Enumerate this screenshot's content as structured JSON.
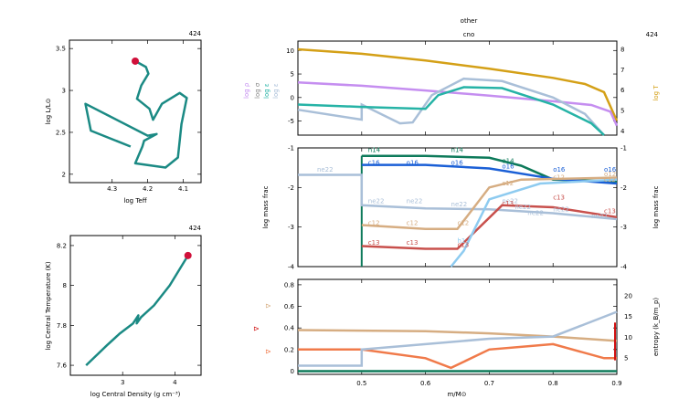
{
  "colors": {
    "teal": "#1b8a84",
    "dot": "#d0103a",
    "purple": "#c58ef0",
    "gold": "#d4a017",
    "grayblue": "#a9bfd8",
    "sea": "#26b3a6",
    "darkgreen": "#0d7a5a",
    "blue": "#1a5fd6",
    "lightblue": "#8ecbf0",
    "tan": "#d6ad82",
    "red": "#c8504c",
    "orange": "#f07a4a",
    "gray": "#888888",
    "darkred": "#d01010"
  },
  "hr": {
    "model": "424",
    "xlabel": "log Teff",
    "ylabel": "log L/L⊙",
    "xticks": [
      "4.3",
      "4.2",
      "4.1"
    ],
    "yticks": [
      "2",
      "2.5",
      "3",
      "3.5"
    ],
    "path": [
      [
        4.248,
        2.33
      ],
      [
        4.36,
        2.52
      ],
      [
        4.375,
        2.84
      ],
      [
        4.2,
        2.46
      ],
      [
        4.175,
        2.48
      ],
      [
        4.21,
        2.4
      ],
      [
        4.215,
        2.33
      ],
      [
        4.235,
        2.13
      ],
      [
        4.15,
        2.08
      ],
      [
        4.115,
        2.2
      ],
      [
        4.105,
        2.6
      ],
      [
        4.09,
        2.91
      ],
      [
        4.11,
        2.97
      ],
      [
        4.16,
        2.84
      ],
      [
        4.185,
        2.65
      ],
      [
        4.195,
        2.78
      ],
      [
        4.23,
        2.9
      ],
      [
        4.218,
        3.06
      ],
      [
        4.198,
        3.2
      ],
      [
        4.205,
        3.28
      ],
      [
        4.235,
        3.35
      ]
    ],
    "end": [
      4.235,
      3.35
    ]
  },
  "trho": {
    "model": "424",
    "xlabel": "log Central Density (g cm⁻³)",
    "ylabel": "log Central Temperature (K)",
    "xticks": [
      "3",
      "4"
    ],
    "yticks": [
      "7.6",
      "7.8",
      "8",
      "8.2"
    ],
    "path": [
      [
        2.3,
        7.6
      ],
      [
        2.7,
        7.7
      ],
      [
        2.95,
        7.76
      ],
      [
        3.2,
        7.81
      ],
      [
        3.3,
        7.85
      ],
      [
        3.27,
        7.81
      ],
      [
        3.35,
        7.84
      ],
      [
        3.6,
        7.9
      ],
      [
        3.9,
        8.0
      ],
      [
        4.25,
        8.15
      ]
    ],
    "end": [
      4.25,
      8.15
    ]
  },
  "top": {
    "model": "424",
    "title1": "other",
    "title2": "cno",
    "yticks": [
      "-5",
      "0",
      "5",
      "10"
    ],
    "rticks": [
      "4",
      "5",
      "6",
      "7",
      "8"
    ],
    "llabels": [
      "log ρ",
      "log σ",
      "log ε",
      "log ε"
    ],
    "rlabel": "log T"
  },
  "mid": {
    "yticks": [
      "-4",
      "-3",
      "-2",
      "-1"
    ],
    "ylabel": "log mass frac",
    "rlabel": "log mass frac",
    "labels": [
      "n14",
      "n14",
      "c16",
      "o16",
      "o16",
      "o14",
      "o16",
      "o16",
      "o16",
      "ne22",
      "ne22",
      "ne22",
      "ne22",
      "ne22",
      "c12",
      "c12",
      "c12",
      "c12",
      "c13",
      "c13",
      "c13",
      "c13",
      "c12",
      "c13",
      "ne22",
      "h1",
      "ne22",
      "o12",
      "c12",
      "c13",
      "ne22",
      "ne22"
    ]
  },
  "bot": {
    "yticks": [
      "0",
      "0.2",
      "0.4",
      "0.6",
      "0.8"
    ],
    "rticks": [
      "5",
      "10",
      "15",
      "20"
    ],
    "xticks": [
      "0.5",
      "0.6",
      "0.7",
      "0.8",
      "0.9"
    ],
    "xlabel": "m/M⊙",
    "rlabel": "entropy (k_B/m_p)",
    "llabels": [
      "∇",
      "∇",
      "∇"
    ]
  },
  "chart_data": [
    {
      "type": "line",
      "title": "",
      "xlabel": "log Teff",
      "ylabel": "log L/L⊙",
      "xlim": [
        4.42,
        4.05
      ],
      "ylim": [
        1.9,
        3.6
      ],
      "series": [
        {
          "values": [
            [
              4.248,
              2.33
            ],
            [
              4.36,
              2.52
            ],
            [
              4.375,
              2.84
            ],
            [
              4.2,
              2.46
            ],
            [
              4.175,
              2.48
            ],
            [
              4.21,
              2.4
            ],
            [
              4.215,
              2.33
            ],
            [
              4.235,
              2.13
            ],
            [
              4.15,
              2.08
            ],
            [
              4.115,
              2.2
            ],
            [
              4.105,
              2.6
            ],
            [
              4.09,
              2.91
            ],
            [
              4.11,
              2.97
            ],
            [
              4.16,
              2.84
            ],
            [
              4.185,
              2.65
            ],
            [
              4.195,
              2.78
            ],
            [
              4.23,
              2.9
            ],
            [
              4.218,
              3.06
            ],
            [
              4.198,
              3.2
            ],
            [
              4.205,
              3.28
            ],
            [
              4.235,
              3.35
            ]
          ]
        }
      ]
    },
    {
      "type": "line",
      "title": "",
      "xlabel": "log Central Density (g cm⁻³)",
      "ylabel": "log Central Temperature (K)",
      "xlim": [
        2.0,
        4.5
      ],
      "ylim": [
        7.55,
        8.25
      ],
      "series": [
        {
          "values": [
            [
              2.3,
              7.6
            ],
            [
              2.7,
              7.7
            ],
            [
              2.95,
              7.76
            ],
            [
              3.2,
              7.81
            ],
            [
              3.3,
              7.85
            ],
            [
              3.27,
              7.81
            ],
            [
              3.35,
              7.84
            ],
            [
              3.6,
              7.9
            ],
            [
              3.9,
              8.0
            ],
            [
              4.25,
              8.15
            ]
          ]
        }
      ]
    },
    {
      "type": "line",
      "title": "other / cno",
      "xlim": [
        0.4,
        0.9
      ],
      "ylim": [
        -8,
        12
      ],
      "y2lim": [
        3.8,
        8.4
      ],
      "series": [
        {
          "color": "#d4a017",
          "axis": "right",
          "values": [
            [
              0.4,
              8.0
            ],
            [
              0.5,
              7.78
            ],
            [
              0.6,
              7.45
            ],
            [
              0.7,
              7.05
            ],
            [
              0.8,
              6.6
            ],
            [
              0.85,
              6.3
            ],
            [
              0.88,
              5.9
            ],
            [
              0.9,
              4.5
            ]
          ]
        },
        {
          "color": "#c58ef0",
          "values": [
            [
              0.4,
              3.2
            ],
            [
              0.5,
              2.5
            ],
            [
              0.6,
              1.5
            ],
            [
              0.7,
              0.4
            ],
            [
              0.8,
              -0.8
            ],
            [
              0.86,
              -1.6
            ],
            [
              0.89,
              -3.0
            ],
            [
              0.9,
              -6
            ]
          ]
        },
        {
          "color": "#a9bfd8",
          "values": [
            [
              0.4,
              -2.6
            ],
            [
              0.5,
              -4.7
            ],
            [
              0.5,
              -1.5
            ],
            [
              0.56,
              -5.5
            ],
            [
              0.58,
              -5.3
            ],
            [
              0.61,
              0.5
            ],
            [
              0.66,
              4.0
            ],
            [
              0.72,
              3.5
            ],
            [
              0.8,
              0
            ],
            [
              0.85,
              -3.5
            ],
            [
              0.88,
              -8
            ]
          ]
        },
        {
          "color": "#26b3a6",
          "values": [
            [
              0.4,
              -1.5
            ],
            [
              0.5,
              -2.0
            ],
            [
              0.6,
              -2.4
            ],
            [
              0.62,
              0.5
            ],
            [
              0.66,
              2.2
            ],
            [
              0.72,
              2.0
            ],
            [
              0.8,
              -1.5
            ],
            [
              0.86,
              -5.5
            ],
            [
              0.88,
              -8
            ]
          ]
        }
      ]
    },
    {
      "type": "line",
      "xlim": [
        0.4,
        0.9
      ],
      "ylim": [
        -4,
        -1
      ],
      "series": [
        {
          "name": "n14",
          "color": "#0d7a5a",
          "values": [
            [
              0.5,
              -1.2
            ],
            [
              0.6,
              -1.2
            ],
            [
              0.7,
              -1.25
            ],
            [
              0.75,
              -1.45
            ],
            [
              0.8,
              -1.8
            ],
            [
              0.9,
              -1.85
            ]
          ]
        },
        {
          "name": "o16",
          "color": "#1a5fd6",
          "values": [
            [
              0.5,
              -1.43
            ],
            [
              0.6,
              -1.43
            ],
            [
              0.7,
              -1.52
            ],
            [
              0.8,
              -1.78
            ],
            [
              0.9,
              -1.9
            ]
          ]
        },
        {
          "name": "ne22",
          "color": "#a9bfd8",
          "values": [
            [
              0.4,
              -1.68
            ],
            [
              0.5,
              -1.68
            ],
            [
              0.5,
              -2.45
            ],
            [
              0.6,
              -2.53
            ],
            [
              0.7,
              -2.55
            ],
            [
              0.8,
              -2.65
            ],
            [
              0.9,
              -2.8
            ]
          ]
        },
        {
          "name": "c12",
          "color": "#d6ad82",
          "values": [
            [
              0.5,
              -2.95
            ],
            [
              0.6,
              -3.05
            ],
            [
              0.65,
              -3.05
            ],
            [
              0.7,
              -2.0
            ],
            [
              0.75,
              -1.8
            ],
            [
              0.9,
              -1.75
            ]
          ]
        },
        {
          "name": "c13",
          "color": "#c8504c",
          "values": [
            [
              0.5,
              -3.48
            ],
            [
              0.6,
              -3.55
            ],
            [
              0.65,
              -3.55
            ],
            [
              0.72,
              -2.45
            ],
            [
              0.8,
              -2.5
            ],
            [
              0.9,
              -2.75
            ]
          ]
        },
        {
          "name": "h1",
          "color": "#8ecbf0",
          "values": [
            [
              0.64,
              -4
            ],
            [
              0.66,
              -3.6
            ],
            [
              0.7,
              -2.3
            ],
            [
              0.78,
              -1.9
            ],
            [
              0.9,
              -1.8
            ]
          ]
        }
      ]
    },
    {
      "type": "line",
      "xlim": [
        0.4,
        0.9
      ],
      "ylim": [
        -0.03,
        0.85
      ],
      "y2lim": [
        1,
        24
      ],
      "series": [
        {
          "color": "#d6ad82",
          "values": [
            [
              0.4,
              0.38
            ],
            [
              0.6,
              0.37
            ],
            [
              0.7,
              0.35
            ],
            [
              0.8,
              0.32
            ],
            [
              0.9,
              0.28
            ]
          ]
        },
        {
          "color": "#f07a4a",
          "values": [
            [
              0.4,
              0.2
            ],
            [
              0.5,
              0.2
            ],
            [
              0.6,
              0.12
            ],
            [
              0.64,
              0.03
            ],
            [
              0.7,
              0.2
            ],
            [
              0.8,
              0.25
            ],
            [
              0.88,
              0.12
            ],
            [
              0.9,
              0.12
            ]
          ]
        },
        {
          "color": "#a9bfd8",
          "values": [
            [
              0.4,
              0.05
            ],
            [
              0.5,
              0.05
            ],
            [
              0.5,
              0.2
            ],
            [
              0.7,
              0.3
            ],
            [
              0.8,
              0.32
            ],
            [
              0.9,
              0.55
            ]
          ]
        },
        {
          "color": "#0d7a5a",
          "values": [
            [
              0.4,
              0.0
            ],
            [
              0.9,
              0.0
            ]
          ]
        }
      ]
    }
  ]
}
